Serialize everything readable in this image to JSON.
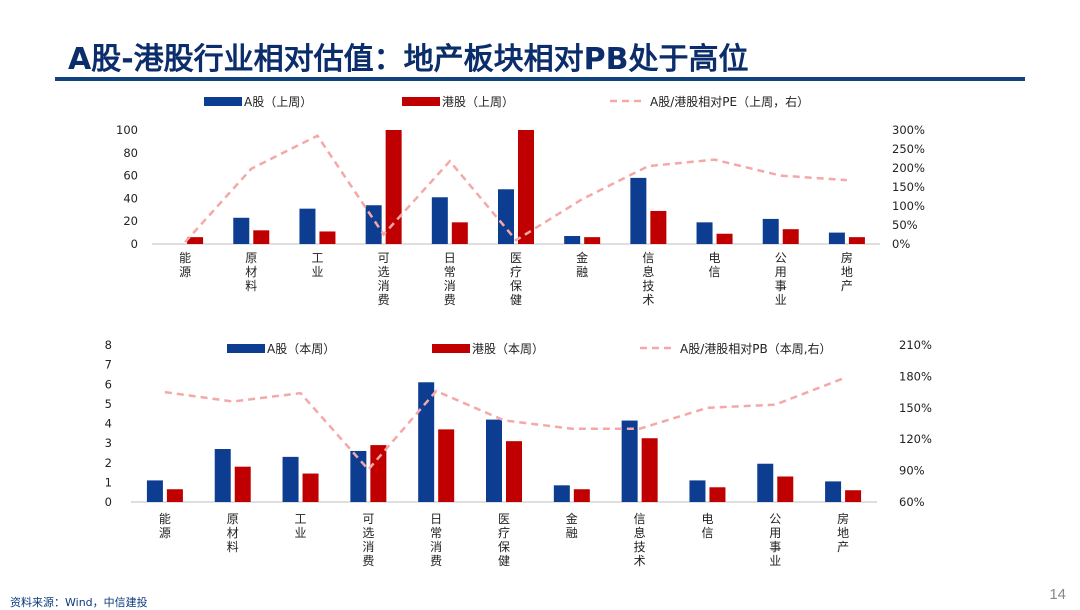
{
  "page": {
    "title": "A股-港股行业相对估值：地产板块相对PB处于高位",
    "footer": "资料来源：Wind，中信建投",
    "page_number": "14"
  },
  "colors": {
    "a_share": "#0d3d91",
    "hk_share": "#c00000",
    "ratio_line": "#f4a8a8",
    "axis": "#bfbfbf",
    "title": "#0b2d6b"
  },
  "chart_data": [
    {
      "id": "top",
      "type": "bar",
      "categories": [
        "能源",
        "原材料",
        "工业",
        "可选消费",
        "日常消费",
        "医疗保健",
        "金融",
        "信息技术",
        "电信",
        "公用事业",
        "房地产"
      ],
      "series": [
        {
          "name": "A股（上周）",
          "values": [
            0,
            23,
            31,
            34,
            41,
            48,
            7,
            58,
            19,
            22,
            10
          ]
        },
        {
          "name": "港股（上周）",
          "values": [
            6,
            12,
            11,
            100,
            19,
            100,
            6,
            29,
            9,
            13,
            6
          ]
        }
      ],
      "line": {
        "name": "A股/港股相对PE（上周，右）",
        "values": [
          5,
          198,
          285,
          25,
          218,
          10,
          118,
          205,
          222,
          180,
          168
        ]
      },
      "ylim": [
        0,
        100
      ],
      "yticks": [
        "0",
        "20",
        "40",
        "60",
        "80",
        "100"
      ],
      "y2lim": [
        0,
        300
      ],
      "y2ticks": [
        "0%",
        "50%",
        "100%",
        "150%",
        "200%",
        "250%",
        "300%"
      ]
    },
    {
      "id": "bottom",
      "type": "bar",
      "categories": [
        "能源",
        "原材料",
        "工业",
        "可选消费",
        "日常消费",
        "医疗保健",
        "金融",
        "信息技术",
        "电信",
        "公用事业",
        "房地产"
      ],
      "series": [
        {
          "name": "A股（本周）",
          "values": [
            1.1,
            2.7,
            2.3,
            2.6,
            6.1,
            4.2,
            0.85,
            4.15,
            1.1,
            1.95,
            1.05
          ]
        },
        {
          "name": "港股（本周）",
          "values": [
            0.65,
            1.8,
            1.45,
            2.9,
            3.7,
            3.1,
            0.65,
            3.25,
            0.75,
            1.3,
            0.6
          ]
        }
      ],
      "line": {
        "name": "A股/港股相对PB（本周,右）",
        "values": [
          165,
          156,
          164,
          91,
          166,
          138,
          130,
          130,
          150,
          153,
          178
        ]
      },
      "ylim": [
        0,
        8
      ],
      "yticks": [
        "0",
        "1",
        "2",
        "3",
        "4",
        "5",
        "6",
        "7",
        "8"
      ],
      "y2lim": [
        60,
        210
      ],
      "y2ticks": [
        "60%",
        "90%",
        "120%",
        "150%",
        "180%",
        "210%"
      ]
    }
  ]
}
